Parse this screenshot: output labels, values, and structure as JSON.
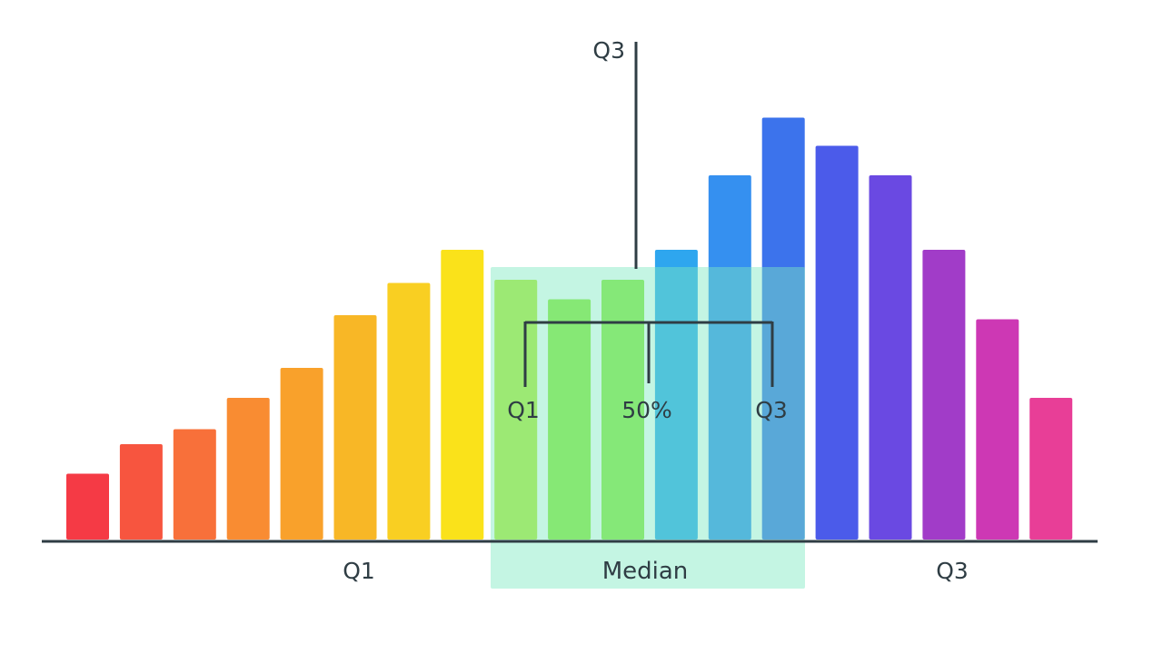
{
  "chart_data": {
    "type": "bar",
    "title": "",
    "xlabel": "",
    "ylabel": "",
    "ylim": [
      0,
      100
    ],
    "grid": false,
    "values": [
      14.5,
      21,
      24.3,
      31.2,
      37.8,
      49.4,
      56.5,
      63.8,
      57.2,
      52.9,
      57.2,
      63.8,
      80.2,
      92.9,
      86.7,
      80.2,
      63.8,
      48.5,
      31.2
    ],
    "bar_colors": [
      "#f53a45",
      "#f7553f",
      "#f8703a",
      "#f98c32",
      "#f9a12b",
      "#f8b726",
      "#f9cf22",
      "#fae21a",
      "#b6ea35",
      "#8ee838",
      "#8ce83c",
      "#2ea6ef",
      "#3590f0",
      "#3c73ec",
      "#4b5bea",
      "#6a49e2",
      "#a13cc8",
      "#cd38b4",
      "#e83e97"
    ],
    "bar_label_color": "#2f3d44",
    "median_band_color": "#7de8c2",
    "annotations": {
      "top_q3": "Q3",
      "bracket_q1": "Q1",
      "bracket_mid": "50%",
      "bracket_q3": "Q3",
      "axis_q1": "Q1",
      "axis_median": "Median",
      "axis_q3": "Q3"
    }
  }
}
